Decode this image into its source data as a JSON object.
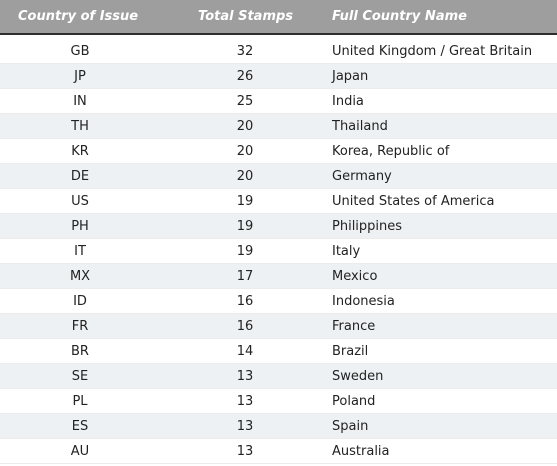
{
  "table": {
    "headers": {
      "country_of_issue": "Country of Issue",
      "total_stamps": "Total Stamps",
      "full_country_name": "Full Country Name"
    },
    "rows": [
      {
        "code": "GB",
        "total": "32",
        "name": "United Kingdom / Great Britain"
      },
      {
        "code": "JP",
        "total": "26",
        "name": "Japan"
      },
      {
        "code": "IN",
        "total": "25",
        "name": "India"
      },
      {
        "code": "TH",
        "total": "20",
        "name": "Thailand"
      },
      {
        "code": "KR",
        "total": "20",
        "name": "Korea, Republic of"
      },
      {
        "code": "DE",
        "total": "20",
        "name": "Germany"
      },
      {
        "code": "US",
        "total": "19",
        "name": "United States of America"
      },
      {
        "code": "PH",
        "total": "19",
        "name": "Philippines"
      },
      {
        "code": "IT",
        "total": "19",
        "name": "Italy"
      },
      {
        "code": "MX",
        "total": "17",
        "name": "Mexico"
      },
      {
        "code": "ID",
        "total": "16",
        "name": "Indonesia"
      },
      {
        "code": "FR",
        "total": "16",
        "name": "France"
      },
      {
        "code": "BR",
        "total": "14",
        "name": "Brazil"
      },
      {
        "code": "SE",
        "total": "13",
        "name": "Sweden"
      },
      {
        "code": "PL",
        "total": "13",
        "name": "Poland"
      },
      {
        "code": "ES",
        "total": "13",
        "name": "Spain"
      },
      {
        "code": "AU",
        "total": "13",
        "name": "Australia"
      }
    ]
  }
}
